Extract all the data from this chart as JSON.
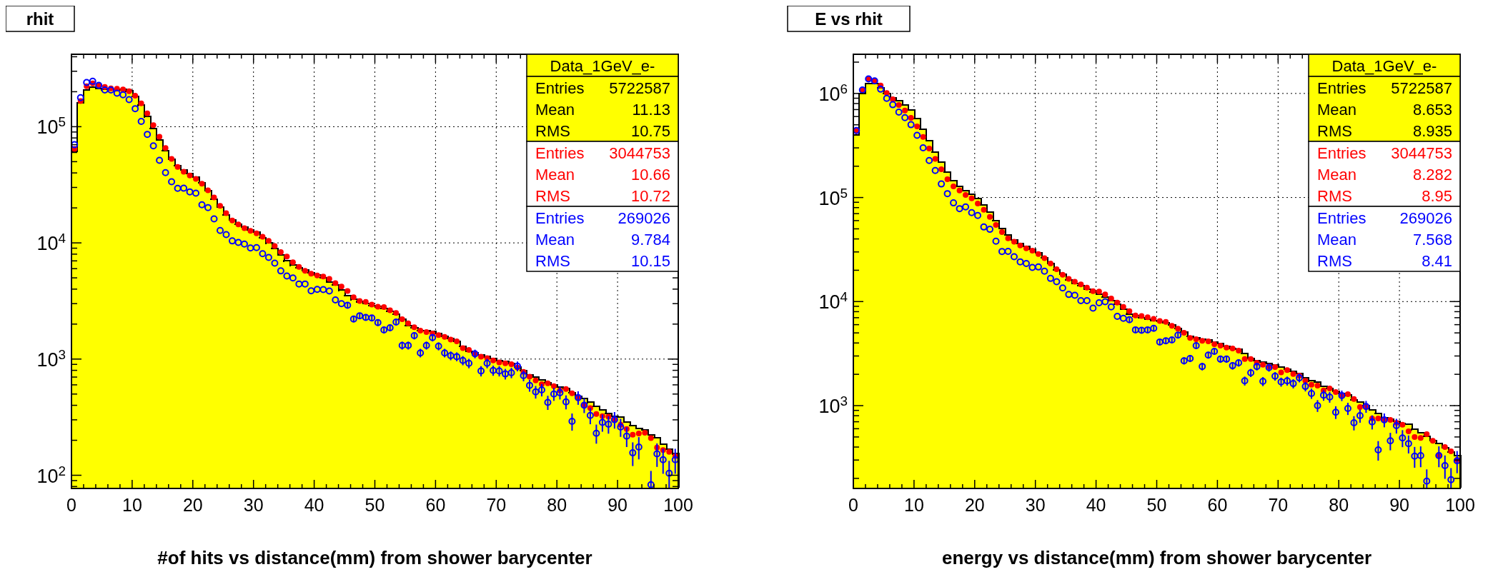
{
  "chart_data": [
    {
      "type": "histogram",
      "title": "rhit",
      "xlabel": "#of hits vs distance(mm) from shower barycenter",
      "log": "y",
      "grid": true,
      "legend": "top right",
      "marker": "circle",
      "xlim": [
        0,
        100
      ],
      "ylim": [
        77,
        420000
      ],
      "xticks": [
        0,
        {
          "value": 2,
          "label": null
        },
        {
          "value": 4,
          "label": null
        },
        {
          "value": 6,
          "label": null
        },
        {
          "value": 8,
          "label": null
        },
        10,
        {
          "value": 12,
          "label": null
        },
        {
          "value": 14,
          "label": null
        },
        {
          "value": 16,
          "label": null
        },
        {
          "value": 18,
          "label": null
        },
        20,
        {
          "value": 22,
          "label": null
        },
        {
          "value": 24,
          "label": null
        },
        {
          "value": 26,
          "label": null
        },
        {
          "value": 28,
          "label": null
        },
        30,
        {
          "value": 32,
          "label": null
        },
        {
          "value": 34,
          "label": null
        },
        {
          "value": 36,
          "label": null
        },
        {
          "value": 38,
          "label": null
        },
        40,
        {
          "value": 42,
          "label": null
        },
        {
          "value": 44,
          "label": null
        },
        {
          "value": 46,
          "label": null
        },
        {
          "value": 48,
          "label": null
        },
        50,
        {
          "value": 52,
          "label": null
        },
        {
          "value": 54,
          "label": null
        },
        {
          "value": 56,
          "label": null
        },
        {
          "value": 58,
          "label": null
        },
        60,
        {
          "value": 62,
          "label": null
        },
        {
          "value": 64,
          "label": null
        },
        {
          "value": 66,
          "label": null
        },
        {
          "value": 68,
          "label": null
        },
        70,
        {
          "value": 72,
          "label": null
        },
        {
          "value": 74,
          "label": null
        },
        {
          "value": 76,
          "label": null
        },
        {
          "value": 78,
          "label": null
        },
        80,
        {
          "value": 82,
          "label": null
        },
        {
          "value": 84,
          "label": null
        },
        {
          "value": 86,
          "label": null
        },
        {
          "value": 88,
          "label": null
        },
        90,
        {
          "value": 92,
          "label": null
        },
        {
          "value": 94,
          "label": null
        },
        {
          "value": 96,
          "label": null
        },
        {
          "value": 98,
          "label": null
        },
        100
      ],
      "yticks": [
        {
          "value": 80,
          "label": null
        },
        {
          "value": 90,
          "label": null
        },
        {
          "value": 100,
          "label": "10$^{2}$"
        },
        {
          "value": 200,
          "label": null
        },
        {
          "value": 300,
          "label": null
        },
        {
          "value": 400,
          "label": null
        },
        {
          "value": 500,
          "label": null
        },
        {
          "value": 600,
          "label": null
        },
        {
          "value": 700,
          "label": null
        },
        {
          "value": 800,
          "label": null
        },
        {
          "value": 900,
          "label": null
        },
        {
          "value": 1000,
          "label": "10$^{3}$"
        },
        {
          "value": 2000,
          "label": null
        },
        {
          "value": 3000,
          "label": null
        },
        {
          "value": 4000,
          "label": null
        },
        {
          "value": 5000,
          "label": null
        },
        {
          "value": 6000,
          "label": null
        },
        {
          "value": 7000,
          "label": null
        },
        {
          "value": 8000,
          "label": null
        },
        {
          "value": 9000,
          "label": null
        },
        {
          "value": 10000,
          "label": "10$^{4}$"
        },
        {
          "value": 20000,
          "label": null
        },
        {
          "value": 30000,
          "label": null
        },
        {
          "value": 40000,
          "label": null
        },
        {
          "value": 50000,
          "label": null
        },
        {
          "value": 60000,
          "label": null
        },
        {
          "value": 70000,
          "label": null
        },
        {
          "value": 80000,
          "label": null
        },
        {
          "value": 90000,
          "label": null
        },
        {
          "value": 100000,
          "label": "10$^{5}$"
        },
        {
          "value": 200000,
          "label": null
        },
        {
          "value": 300000,
          "label": null
        },
        {
          "value": 400000,
          "label": null
        }
      ],
      "bins": [
        0,
        1,
        2,
        3,
        4,
        5,
        6,
        7,
        8,
        9,
        10,
        11,
        12,
        13,
        14,
        15,
        16,
        17,
        18,
        19,
        20,
        21,
        22,
        23,
        24,
        25,
        26,
        27,
        28,
        29,
        30,
        31,
        32,
        33,
        34,
        35,
        36,
        37,
        38,
        39,
        40,
        41,
        42,
        43,
        44,
        45,
        46,
        47,
        48,
        49,
        50,
        51,
        52,
        53,
        54,
        55,
        56,
        57,
        58,
        59,
        60,
        61,
        62,
        63,
        64,
        65,
        66,
        67,
        68,
        69,
        70,
        71,
        72,
        73,
        74,
        75,
        76,
        77,
        78,
        79,
        80,
        81,
        82,
        83,
        84,
        85,
        86,
        87,
        88,
        89,
        90,
        91,
        92,
        93,
        94,
        95,
        96,
        97,
        98,
        99,
        100
      ],
      "series": [
        {
          "name": "Data_1GeV_e-",
          "color": "#ffff00",
          "values": [
            61500,
            161000,
            207000,
            219000,
            213000,
            209000,
            211000,
            211000,
            209000,
            203000,
            183000,
            153000,
            122000,
            97000,
            77000,
            62600,
            52500,
            46100,
            42500,
            39800,
            37000,
            33000,
            28300,
            23900,
            20400,
            17500,
            15700,
            14500,
            13700,
            13000,
            12400,
            11100,
            9950,
            8980,
            7890,
            7000,
            6430,
            6080,
            5810,
            5550,
            5310,
            5040,
            4630,
            4330,
            3910,
            3530,
            3260,
            3120,
            3000,
            2900,
            2830,
            2740,
            2590,
            2430,
            2210,
            1950,
            1860,
            1760,
            1760,
            1740,
            1660,
            1570,
            1500,
            1420,
            1290,
            1170,
            1130,
            1090,
            1050,
            1010,
            973,
            955,
            919,
            854,
            798,
            733,
            705,
            666,
            629,
            601,
            574,
            562,
            513,
            480,
            459,
            424,
            394,
            366,
            341,
            323,
            319,
            288,
            269,
            254,
            246,
            223,
            211,
            185,
            168,
            153
          ]
        },
        {
          "type": "scatter",
          "color": "#ff0000",
          "x": [
            0.5,
            1.5,
            2.5,
            3.5,
            4.5,
            5.5,
            6.5,
            7.5,
            8.5,
            9.5,
            10.5,
            11.5,
            12.5,
            13.5,
            14.5,
            15.5,
            16.5,
            17.5,
            18.5,
            19.5,
            20.5,
            21.5,
            22.5,
            23.5,
            24.5,
            25.5,
            26.5,
            27.5,
            28.5,
            29.5,
            30.5,
            31.5,
            32.5,
            33.5,
            34.5,
            35.5,
            36.5,
            37.5,
            38.5,
            39.5,
            40.5,
            41.5,
            42.5,
            43.5,
            44.5,
            45.5,
            46.5,
            47.5,
            48.5,
            49.5,
            50.5,
            51.5,
            52.5,
            53.5,
            54.5,
            55.5,
            56.5,
            57.5,
            58.5,
            59.5,
            60.5,
            61.5,
            62.5,
            63.5,
            64.5,
            65.5,
            66.5,
            67.5,
            68.5,
            69.5,
            70.5,
            71.5,
            72.5,
            73.5,
            74.5,
            75.5,
            76.5,
            77.5,
            78.5,
            79.5,
            80.5,
            81.5,
            82.5,
            83.5,
            84.5,
            85.5,
            86.5,
            87.5,
            88.5,
            89.5,
            90.5,
            91.5,
            92.5,
            93.5,
            94.5,
            95.5,
            96.5,
            97.5,
            98.5,
            99.5
          ],
          "values": [
            64300,
            166000,
            223000,
            236000,
            227000,
            220000,
            214000,
            212000,
            209000,
            202000,
            185000,
            159000,
            130000,
            103000,
            82000,
            65500,
            52800,
            45100,
            40900,
            38000,
            35500,
            32300,
            28300,
            24600,
            20800,
            18000,
            15600,
            14400,
            13400,
            12700,
            12100,
            11300,
            10400,
            9400,
            8340,
            7620,
            6800,
            6220,
            5740,
            5430,
            5250,
            5130,
            4900,
            4500,
            4210,
            3850,
            3400,
            3160,
            3100,
            2950,
            2820,
            2800,
            2630,
            2490,
            2200,
            2030,
            1880,
            1760,
            1710,
            1660,
            1610,
            1550,
            1470,
            1420,
            1240,
            1200,
            1110,
            1050,
            1020,
            973,
            935,
            919,
            903,
            844,
            775,
            705,
            655,
            608,
            618,
            584,
            537,
            552,
            507,
            459,
            405,
            378,
            337,
            323,
            319,
            302,
            272,
            250,
            223,
            229,
            232,
            209,
            173,
            165,
            159,
            146
          ]
        },
        {
          "type": "scatter",
          "color": "#0000ff",
          "x": [
            0.5,
            1.5,
            2.5,
            3.5,
            4.5,
            5.5,
            6.5,
            7.5,
            8.5,
            9.5,
            10.5,
            11.5,
            12.5,
            13.5,
            14.5,
            15.5,
            16.5,
            17.5,
            18.5,
            19.5,
            20.5,
            21.5,
            22.5,
            23.5,
            24.5,
            25.5,
            26.5,
            27.5,
            28.5,
            29.5,
            30.5,
            31.5,
            32.5,
            33.5,
            34.5,
            35.5,
            36.5,
            37.5,
            38.5,
            39.5,
            40.5,
            41.5,
            42.5,
            43.5,
            44.5,
            45.5,
            46.5,
            47.5,
            48.5,
            49.5,
            50.5,
            51.5,
            52.5,
            53.5,
            54.5,
            55.5,
            56.5,
            57.5,
            58.5,
            59.5,
            60.5,
            61.5,
            62.5,
            63.5,
            64.5,
            65.5,
            66.5,
            67.5,
            68.5,
            69.5,
            70.5,
            71.5,
            72.5,
            73.5,
            74.5,
            75.5,
            76.5,
            77.5,
            78.5,
            79.5,
            80.5,
            81.5,
            82.5,
            83.5,
            84.5,
            85.5,
            86.5,
            87.5,
            88.5,
            89.5,
            90.5,
            91.5,
            92.5,
            93.5,
            94.5,
            95.5,
            96.5,
            97.5,
            98.5,
            99.5
          ],
          "values": [
            70000,
            178000,
            240000,
            246000,
            227000,
            207000,
            207000,
            194000,
            188000,
            171000,
            143000,
            111000,
            85900,
            68400,
            51300,
            40200,
            33600,
            29500,
            29600,
            27500,
            26800,
            21300,
            20100,
            16100,
            12800,
            11800,
            10400,
            10100,
            9780,
            9030,
            9100,
            8070,
            7500,
            6700,
            5740,
            5190,
            4990,
            4430,
            4430,
            3870,
            3980,
            3960,
            3850,
            3230,
            3000,
            2900,
            2210,
            2360,
            2280,
            2260,
            2060,
            1780,
            1860,
            2080,
            1310,
            1310,
            1590,
            1130,
            1310,
            1530,
            1290,
            1130,
            1070,
            1050,
            973,
            919,
            1110,
            789,
            919,
            798,
            789,
            745,
            763,
            868,
            720,
            594,
            522,
            543,
            424,
            501,
            513,
            428,
            291,
            466,
            400,
            327,
            230,
            285,
            275,
            301,
            260,
            217,
            156,
            175,
            null,
            83,
            153,
            136,
            104,
            136
          ],
          "errors": [
            null,
            null,
            null,
            null,
            null,
            null,
            null,
            null,
            null,
            null,
            null,
            null,
            null,
            null,
            null,
            null,
            null,
            null,
            null,
            null,
            null,
            null,
            null,
            null,
            null,
            null,
            null,
            null,
            null,
            null,
            null,
            null,
            null,
            null,
            null,
            null,
            null,
            null,
            null,
            null,
            null,
            null,
            null,
            null,
            null,
            154,
            134,
            139,
            136,
            136,
            129,
            120,
            123,
            130,
            103,
            103,
            114,
            96,
            103,
            111,
            102,
            96,
            93,
            92,
            89,
            86,
            95,
            80,
            86,
            80,
            80,
            78,
            79,
            84,
            76,
            70,
            65,
            66,
            59,
            64,
            64,
            59,
            49,
            62,
            57,
            52,
            43,
            48,
            47,
            49,
            46,
            42,
            36,
            38,
            null,
            [
              77,
              109
            ],
            35,
            33,
            [
              77,
              133
            ],
            33
          ]
        }
      ],
      "annotations": [
        "Entries 5722587",
        "Mean 11.13",
        "RMS 10.75",
        "Entries 3044753",
        "Mean 10.66",
        "RMS 10.72",
        "Entries 269026",
        "Mean 9.784",
        "RMS 10.15"
      ]
    },
    {
      "type": "histogram",
      "title": "E vs rhit",
      "xlabel": "energy vs distance(mm) from shower barycenter",
      "log": "y",
      "grid": true,
      "legend": "top right",
      "marker": "circle",
      "xlim": [
        0,
        100
      ],
      "ylim": [
        160,
        2380000
      ],
      "xticks": [
        0,
        {
          "value": 2,
          "label": null
        },
        {
          "value": 4,
          "label": null
        },
        {
          "value": 6,
          "label": null
        },
        {
          "value": 8,
          "label": null
        },
        10,
        {
          "value": 12,
          "label": null
        },
        {
          "value": 14,
          "label": null
        },
        {
          "value": 16,
          "label": null
        },
        {
          "value": 18,
          "label": null
        },
        20,
        {
          "value": 22,
          "label": null
        },
        {
          "value": 24,
          "label": null
        },
        {
          "value": 26,
          "label": null
        },
        {
          "value": 28,
          "label": null
        },
        30,
        {
          "value": 32,
          "label": null
        },
        {
          "value": 34,
          "label": null
        },
        {
          "value": 36,
          "label": null
        },
        {
          "value": 38,
          "label": null
        },
        40,
        {
          "value": 42,
          "label": null
        },
        {
          "value": 44,
          "label": null
        },
        {
          "value": 46,
          "label": null
        },
        {
          "value": 48,
          "label": null
        },
        50,
        {
          "value": 52,
          "label": null
        },
        {
          "value": 54,
          "label": null
        },
        {
          "value": 56,
          "label": null
        },
        {
          "value": 58,
          "label": null
        },
        60,
        {
          "value": 62,
          "label": null
        },
        {
          "value": 64,
          "label": null
        },
        {
          "value": 66,
          "label": null
        },
        {
          "value": 68,
          "label": null
        },
        70,
        {
          "value": 72,
          "label": null
        },
        {
          "value": 74,
          "label": null
        },
        {
          "value": 76,
          "label": null
        },
        {
          "value": 78,
          "label": null
        },
        80,
        {
          "value": 82,
          "label": null
        },
        {
          "value": 84,
          "label": null
        },
        {
          "value": 86,
          "label": null
        },
        {
          "value": 88,
          "label": null
        },
        90,
        {
          "value": 92,
          "label": null
        },
        {
          "value": 94,
          "label": null
        },
        {
          "value": 96,
          "label": null
        },
        {
          "value": 98,
          "label": null
        },
        100
      ],
      "yticks": [
        {
          "value": 200,
          "label": null
        },
        {
          "value": 300,
          "label": null
        },
        {
          "value": 400,
          "label": null
        },
        {
          "value": 500,
          "label": null
        },
        {
          "value": 600,
          "label": null
        },
        {
          "value": 700,
          "label": null
        },
        {
          "value": 800,
          "label": null
        },
        {
          "value": 900,
          "label": null
        },
        {
          "value": 1000,
          "label": "10$^{3}$"
        },
        {
          "value": 2000,
          "label": null
        },
        {
          "value": 3000,
          "label": null
        },
        {
          "value": 4000,
          "label": null
        },
        {
          "value": 5000,
          "label": null
        },
        {
          "value": 6000,
          "label": null
        },
        {
          "value": 7000,
          "label": null
        },
        {
          "value": 8000,
          "label": null
        },
        {
          "value": 9000,
          "label": null
        },
        {
          "value": 10000,
          "label": "10$^{4}$"
        },
        {
          "value": 20000,
          "label": null
        },
        {
          "value": 30000,
          "label": null
        },
        {
          "value": 40000,
          "label": null
        },
        {
          "value": 50000,
          "label": null
        },
        {
          "value": 60000,
          "label": null
        },
        {
          "value": 70000,
          "label": null
        },
        {
          "value": 80000,
          "label": null
        },
        {
          "value": 90000,
          "label": null
        },
        {
          "value": 100000,
          "label": "10$^{5}$"
        },
        {
          "value": 200000,
          "label": null
        },
        {
          "value": 300000,
          "label": null
        },
        {
          "value": 400000,
          "label": null
        },
        {
          "value": 500000,
          "label": null
        },
        {
          "value": 600000,
          "label": null
        },
        {
          "value": 700000,
          "label": null
        },
        {
          "value": 800000,
          "label": null
        },
        {
          "value": 900000,
          "label": null
        },
        {
          "value": 1000000,
          "label": "10$^{6}$"
        },
        {
          "value": 2000000,
          "label": null
        }
      ],
      "bins": [
        0,
        1,
        2,
        3,
        4,
        5,
        6,
        7,
        8,
        9,
        10,
        11,
        12,
        13,
        14,
        15,
        16,
        17,
        18,
        19,
        20,
        21,
        22,
        23,
        24,
        25,
        26,
        27,
        28,
        29,
        30,
        31,
        32,
        33,
        34,
        35,
        36,
        37,
        38,
        39,
        40,
        41,
        42,
        43,
        44,
        45,
        46,
        47,
        48,
        49,
        50,
        51,
        52,
        53,
        54,
        55,
        56,
        57,
        58,
        59,
        60,
        61,
        62,
        63,
        64,
        65,
        66,
        67,
        68,
        69,
        70,
        71,
        72,
        73,
        74,
        75,
        76,
        77,
        78,
        79,
        80,
        81,
        82,
        83,
        84,
        85,
        86,
        87,
        88,
        89,
        90,
        91,
        92,
        93,
        94,
        95,
        96,
        97,
        98,
        99,
        100
      ],
      "series": [
        {
          "name": "Data_1GeV_e-",
          "color": "#ffff00",
          "values": [
            402000,
            1000000,
            1250000,
            1250000,
            1130000,
            1000000,
            912000,
            851000,
            780000,
            695000,
            575000,
            455000,
            351000,
            273000,
            219000,
            176000,
            145000,
            128000,
            117000,
            108000,
            98100,
            84900,
            72400,
            60000,
            50600,
            43800,
            39300,
            36200,
            34000,
            31900,
            29600,
            26400,
            23200,
            20200,
            18400,
            16200,
            15000,
            14200,
            13200,
            12400,
            11800,
            11100,
            10200,
            9490,
            8460,
            7600,
            7270,
            7000,
            6820,
            6570,
            6500,
            6250,
            5970,
            5500,
            5070,
            4640,
            4470,
            4360,
            4280,
            4090,
            3940,
            3740,
            3540,
            3470,
            3180,
            2840,
            2700,
            2630,
            2530,
            2470,
            2350,
            2230,
            2130,
            2040,
            1850,
            1730,
            1690,
            1530,
            1460,
            1370,
            1310,
            1260,
            1140,
            1090,
            1000,
            910,
            843,
            762,
            743,
            706,
            672,
            668,
            591,
            548,
            508,
            460,
            432,
            393,
            357,
            331
          ]
        },
        {
          "type": "scatter",
          "color": "#ff0000",
          "x": [
            0.5,
            1.5,
            2.5,
            3.5,
            4.5,
            5.5,
            6.5,
            7.5,
            8.5,
            9.5,
            10.5,
            11.5,
            12.5,
            13.5,
            14.5,
            15.5,
            16.5,
            17.5,
            18.5,
            19.5,
            20.5,
            21.5,
            22.5,
            23.5,
            24.5,
            25.5,
            26.5,
            27.5,
            28.5,
            29.5,
            30.5,
            31.5,
            32.5,
            33.5,
            34.5,
            35.5,
            36.5,
            37.5,
            38.5,
            39.5,
            40.5,
            41.5,
            42.5,
            43.5,
            44.5,
            45.5,
            46.5,
            47.5,
            48.5,
            49.5,
            50.5,
            51.5,
            52.5,
            53.5,
            54.5,
            55.5,
            56.5,
            57.5,
            58.5,
            59.5,
            60.5,
            61.5,
            62.5,
            63.5,
            64.5,
            65.5,
            66.5,
            67.5,
            68.5,
            69.5,
            70.5,
            71.5,
            72.5,
            73.5,
            74.5,
            75.5,
            76.5,
            77.5,
            78.5,
            79.5,
            80.5,
            81.5,
            82.5,
            83.5,
            84.5,
            85.5,
            86.5,
            87.5,
            88.5,
            89.5,
            90.5,
            91.5,
            92.5,
            93.5,
            94.5,
            95.5,
            96.5,
            97.5,
            98.5,
            99.5
          ],
          "values": [
            433000,
            1080000,
            1380000,
            1320000,
            1190000,
            1010000,
            881000,
            776000,
            687000,
            583000,
            482000,
            382000,
            296000,
            235000,
            187000,
            150000,
            128000,
            117000,
            106000,
            98100,
            87500,
            76200,
            65100,
            54500,
            46600,
            40500,
            37600,
            34600,
            32500,
            30900,
            28600,
            26100,
            23200,
            20500,
            18100,
            16500,
            15500,
            14600,
            13600,
            12600,
            12500,
            11700,
            10700,
            9770,
            8890,
            8080,
            7360,
            7270,
            7070,
            6810,
            6500,
            6370,
            5860,
            5500,
            5010,
            4470,
            4350,
            4200,
            4140,
            3890,
            3770,
            3610,
            3540,
            3380,
            2800,
            2800,
            2580,
            2470,
            2380,
            2350,
            2090,
            2200,
            2010,
            1940,
            1730,
            1590,
            1560,
            1400,
            1460,
            1350,
            1260,
            1290,
            1160,
            969,
            969,
            753,
            753,
            730,
            730,
            685,
            655,
            567,
            499,
            490,
            532,
            460,
            335,
            400,
            364,
            301
          ]
        },
        {
          "type": "scatter",
          "color": "#0000ff",
          "x": [
            0.5,
            1.5,
            2.5,
            3.5,
            4.5,
            5.5,
            6.5,
            7.5,
            8.5,
            9.5,
            10.5,
            11.5,
            12.5,
            13.5,
            14.5,
            15.5,
            16.5,
            17.5,
            18.5,
            19.5,
            20.5,
            21.5,
            22.5,
            23.5,
            24.5,
            25.5,
            26.5,
            27.5,
            28.5,
            29.5,
            30.5,
            31.5,
            32.5,
            33.5,
            34.5,
            35.5,
            36.5,
            37.5,
            38.5,
            39.5,
            40.5,
            41.5,
            42.5,
            43.5,
            44.5,
            45.5,
            46.5,
            47.5,
            48.5,
            49.5,
            50.5,
            51.5,
            52.5,
            53.5,
            54.5,
            55.5,
            56.5,
            57.5,
            58.5,
            59.5,
            60.5,
            61.5,
            62.5,
            63.5,
            64.5,
            65.5,
            66.5,
            67.5,
            68.5,
            69.5,
            70.5,
            71.5,
            72.5,
            73.5,
            74.5,
            75.5,
            76.5,
            77.5,
            78.5,
            79.5,
            80.5,
            81.5,
            82.5,
            83.5,
            84.5,
            85.5,
            86.5,
            87.5,
            88.5,
            89.5,
            90.5,
            91.5,
            92.5,
            93.5,
            94.5,
            95.5,
            96.5,
            97.5,
            98.5,
            99.5
          ],
          "values": [
            440000,
            1080000,
            1380000,
            1320000,
            1100000,
            896000,
            780000,
            661000,
            586000,
            501000,
            396000,
            300000,
            227000,
            182000,
            135000,
            109000,
            88800,
            78200,
            81200,
            71600,
            67200,
            52100,
            49500,
            38000,
            30300,
            30400,
            27000,
            24100,
            23200,
            21300,
            21500,
            19600,
            16700,
            15500,
            13500,
            11700,
            11500,
            10200,
            10200,
            8640,
            9730,
            9970,
            8890,
            7220,
            6900,
            6690,
            5350,
            5300,
            5350,
            5530,
            4090,
            4200,
            4280,
            4760,
            2700,
            2840,
            3770,
            2380,
            3060,
            3320,
            2800,
            2800,
            2420,
            2580,
            1730,
            2070,
            2380,
            1710,
            2320,
            1920,
            1690,
            1730,
            1630,
            1850,
            1530,
            1310,
            1000,
            1260,
            1210,
            865,
            1250,
            939,
            685,
            801,
            981,
            698,
            376,
            730,
            460,
            643,
            490,
            432,
            327,
            331,
            188,
            null,
            331,
            265,
            194,
            295
          ],
          "errors": [
            null,
            null,
            null,
            null,
            null,
            null,
            null,
            null,
            null,
            null,
            null,
            null,
            null,
            null,
            null,
            null,
            null,
            null,
            null,
            null,
            null,
            null,
            null,
            null,
            null,
            null,
            null,
            null,
            null,
            null,
            null,
            null,
            null,
            null,
            null,
            null,
            null,
            null,
            null,
            null,
            null,
            null,
            null,
            null,
            null,
            335,
            300,
            298,
            300,
            305,
            262,
            266,
            268,
            283,
            213,
            219,
            252,
            200,
            227,
            236,
            217,
            217,
            202,
            208,
            171,
            187,
            200,
            170,
            198,
            180,
            169,
            171,
            166,
            176,
            160,
            148,
            130,
            146,
            143,
            121,
            145,
            126,
            107,
            116,
            128,
            108,
            80,
            111,
            88,
            104,
            91,
            85,
            74,
            75,
            [
              160,
              244
            ],
            null,
            75,
            67,
            [
              160,
              251
            ],
            71
          ]
        }
      ],
      "annotations": [
        "Entries 5722587",
        "Mean 8.653",
        "RMS 8.935",
        "Entries 3044753",
        "Mean 8.282",
        "RMS 8.95",
        "Entries 269026",
        "Mean 7.568",
        "RMS 8.41"
      ]
    }
  ]
}
